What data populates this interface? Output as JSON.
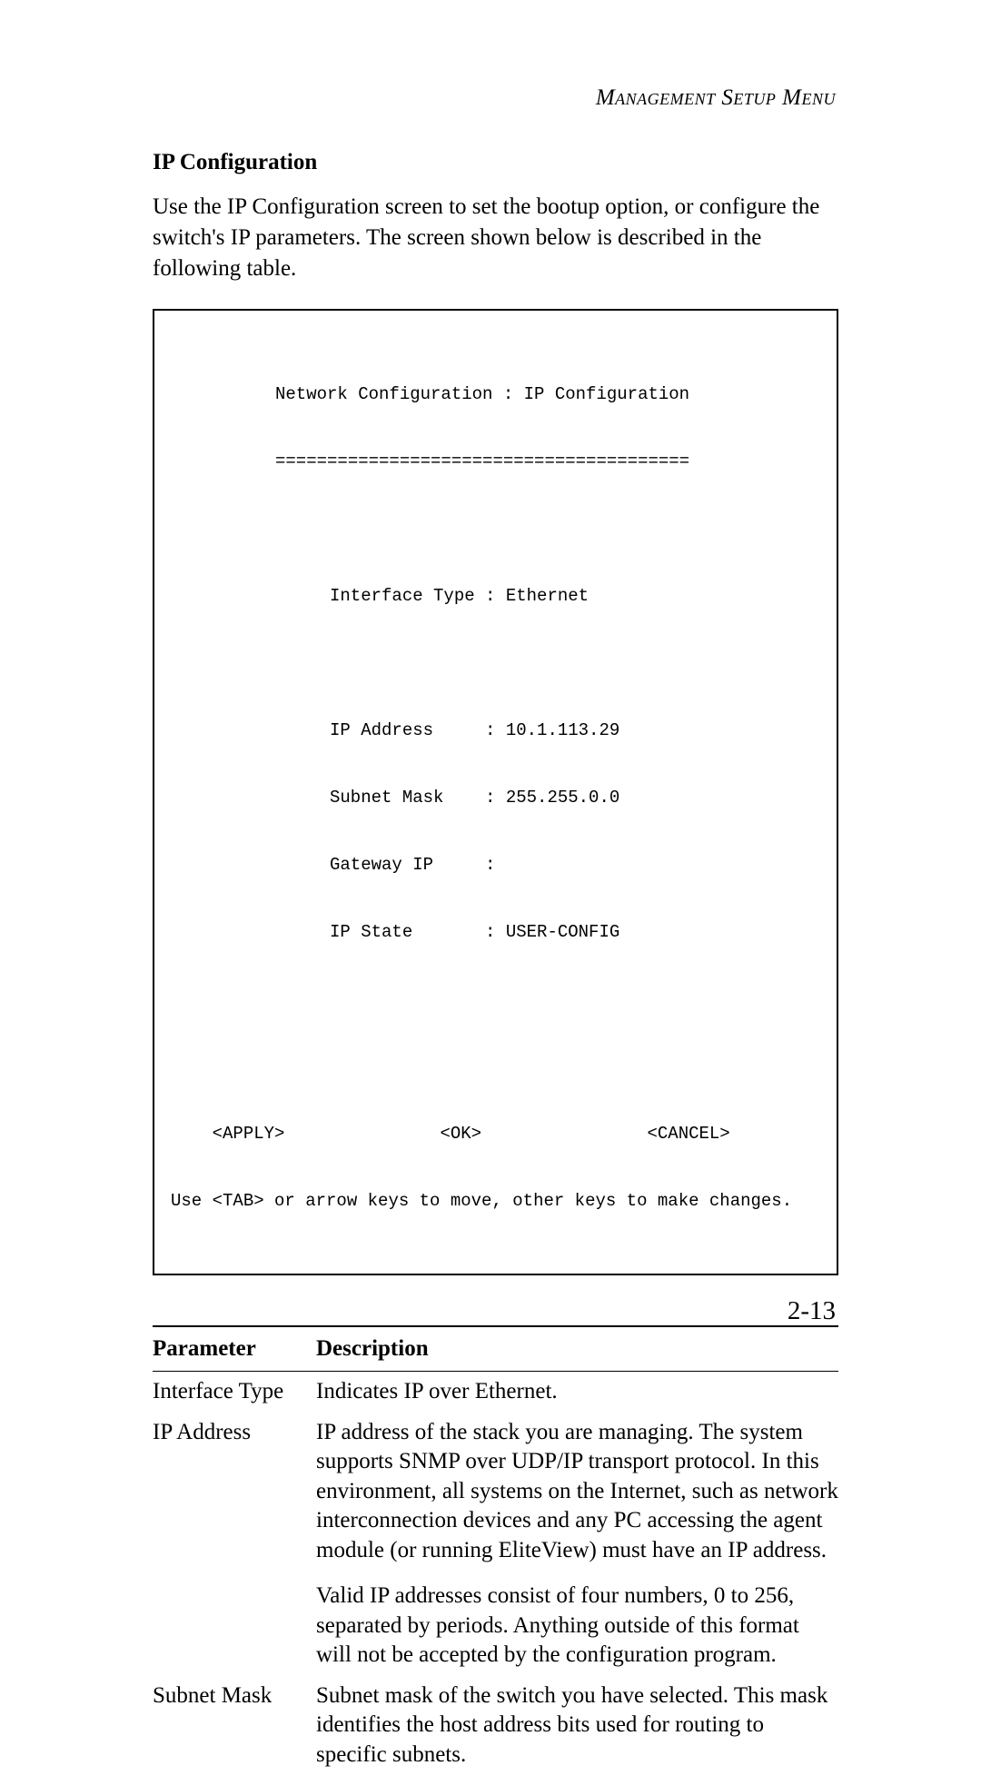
{
  "header": {
    "title": "Management Setup Menu"
  },
  "section": {
    "title": "IP Configuration",
    "paragraph": "Use the IP Configuration screen to set the bootup option, or configure the switch's IP parameters. The screen shown below is described in the following table."
  },
  "terminal": {
    "title": "Network Configuration : IP Configuration",
    "divider": "========================================",
    "interface_type_label": "Interface Type : Ethernet",
    "ip_address_line": "IP Address     : 10.1.113.29",
    "subnet_mask_line": "Subnet Mask    : 255.255.0.0",
    "gateway_ip_line": "Gateway IP     :",
    "ip_state_line": "IP State       : USER-CONFIG",
    "buttons_line": "    <APPLY>               <OK>                <CANCEL>",
    "help_line": "Use <TAB> or arrow keys to move, other keys to make changes."
  },
  "table": {
    "header_parameter": "Parameter",
    "header_description": "Description",
    "rows": [
      {
        "parameter": "Interface Type",
        "descriptions": [
          "Indicates IP over Ethernet."
        ]
      },
      {
        "parameter": "IP Address",
        "descriptions": [
          "IP address of the stack you are managing. The system supports SNMP over UDP/IP transport protocol. In this environment, all systems on the Internet, such as network interconnection devices and any PC accessing the agent module (or running EliteView) must have an IP address.",
          "Valid IP addresses consist of four numbers, 0 to 256, separated by periods. Anything outside of this format will not be accepted by the configuration program."
        ]
      },
      {
        "parameter": "Subnet Mask",
        "descriptions": [
          "Subnet mask of the switch you have selected. This mask identifies the host address bits used for routing to specific subnets."
        ]
      }
    ]
  },
  "page_number": "2-13"
}
